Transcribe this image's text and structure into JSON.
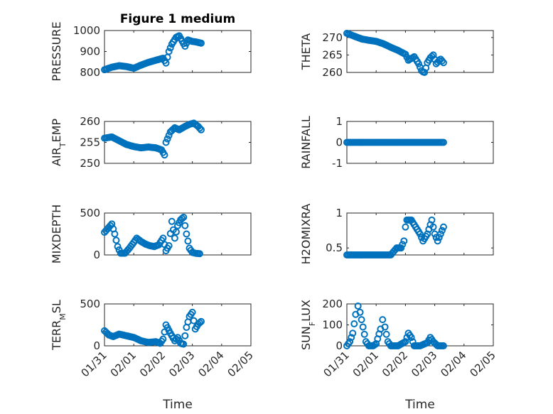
{
  "colors": {
    "marker": "#0072BD",
    "axis": "#262626"
  },
  "chart_data": [
    {
      "type": "scatter",
      "title": "Figure 1 medium",
      "ylabel": "PRESSURE",
      "xlabel": "",
      "ylim": [
        800,
        1000
      ],
      "yticks": [
        800,
        900,
        1000
      ],
      "xlim": [
        0,
        5
      ],
      "xticks": [
        "01/31",
        "02/01",
        "02/02",
        "02/03",
        "02/04",
        "02/05"
      ],
      "xticklabels_shown": false,
      "grid": true,
      "points": [
        [
          0,
          813
        ],
        [
          0.25,
          825
        ],
        [
          0.5,
          832
        ],
        [
          0.75,
          828
        ],
        [
          1,
          820
        ],
        [
          1.25,
          835
        ],
        [
          1.5,
          848
        ],
        [
          1.75,
          858
        ],
        [
          2,
          868
        ],
        [
          2.1,
          845
        ],
        [
          2.2,
          900
        ],
        [
          2.3,
          935
        ],
        [
          2.45,
          968
        ],
        [
          2.55,
          975
        ],
        [
          2.65,
          950
        ],
        [
          2.75,
          925
        ],
        [
          2.85,
          955
        ],
        [
          3,
          948
        ],
        [
          3.15,
          945
        ],
        [
          3.3,
          940
        ]
      ]
    },
    {
      "type": "scatter",
      "title": "",
      "ylabel": "THETA",
      "xlabel": "",
      "ylim": [
        260,
        272
      ],
      "yticks": [
        260,
        265,
        270
      ],
      "xlim": [
        0,
        5
      ],
      "xticks": [
        "01/31",
        "02/01",
        "02/02",
        "02/03",
        "02/04",
        "02/05"
      ],
      "xticklabels_shown": false,
      "grid": true,
      "points": [
        [
          0,
          271.2
        ],
        [
          0.25,
          270.4
        ],
        [
          0.5,
          269.6
        ],
        [
          0.75,
          269.2
        ],
        [
          1,
          268.9
        ],
        [
          1.25,
          268.2
        ],
        [
          1.5,
          267.2
        ],
        [
          1.75,
          266.3
        ],
        [
          2,
          265.2
        ],
        [
          2.1,
          263.5
        ],
        [
          2.3,
          264.5
        ],
        [
          2.45,
          262.5
        ],
        [
          2.55,
          260.5
        ],
        [
          2.65,
          259.8
        ],
        [
          2.75,
          262.8
        ],
        [
          2.85,
          264.2
        ],
        [
          2.95,
          265
        ],
        [
          3.05,
          262.5
        ],
        [
          3.2,
          263.8
        ],
        [
          3.3,
          262.8
        ]
      ]
    },
    {
      "type": "scatter",
      "title": "",
      "ylabel": "AIR_TEMP",
      "xlabel": "",
      "ylim": [
        250,
        260
      ],
      "yticks": [
        250,
        255,
        260
      ],
      "xlim": [
        0,
        5
      ],
      "xticks": [
        "01/31",
        "02/01",
        "02/02",
        "02/03",
        "02/04",
        "02/05"
      ],
      "xticklabels_shown": false,
      "grid": true,
      "points": [
        [
          0,
          256
        ],
        [
          0.25,
          256.3
        ],
        [
          0.5,
          255.4
        ],
        [
          0.75,
          254.5
        ],
        [
          1,
          254
        ],
        [
          1.25,
          253.7
        ],
        [
          1.5,
          253.9
        ],
        [
          1.75,
          253.7
        ],
        [
          1.95,
          253.2
        ],
        [
          2.05,
          252
        ],
        [
          2.1,
          255
        ],
        [
          2.25,
          257.5
        ],
        [
          2.4,
          258.5
        ],
        [
          2.55,
          258
        ],
        [
          2.75,
          258.8
        ],
        [
          2.9,
          259.3
        ],
        [
          3.05,
          259.6
        ],
        [
          3.2,
          258.8
        ],
        [
          3.3,
          258
        ]
      ]
    },
    {
      "type": "scatter",
      "title": "",
      "ylabel": "RAINFALL",
      "xlabel": "",
      "ylim": [
        -1,
        1
      ],
      "yticks": [
        -1,
        0,
        1
      ],
      "xlim": [
        0,
        5
      ],
      "xticks": [
        "01/31",
        "02/01",
        "02/02",
        "02/03",
        "02/04",
        "02/05"
      ],
      "xticklabels_shown": false,
      "grid": true,
      "points": [
        [
          0,
          0
        ],
        [
          0.25,
          0
        ],
        [
          0.5,
          0
        ],
        [
          0.75,
          0
        ],
        [
          1,
          0
        ],
        [
          1.25,
          0
        ],
        [
          1.5,
          0
        ],
        [
          1.75,
          0
        ],
        [
          2,
          0
        ],
        [
          2.25,
          0
        ],
        [
          2.5,
          0
        ],
        [
          2.75,
          0
        ],
        [
          3,
          0
        ],
        [
          3.25,
          0
        ],
        [
          3.3,
          0
        ]
      ]
    },
    {
      "type": "scatter",
      "title": "",
      "ylabel": "MIXDEPTH",
      "xlabel": "",
      "ylim": [
        0,
        500
      ],
      "yticks": [
        0,
        500
      ],
      "xlim": [
        0,
        5
      ],
      "xticks": [
        "01/31",
        "02/01",
        "02/02",
        "02/03",
        "02/04",
        "02/05"
      ],
      "xticklabels_shown": false,
      "grid": true,
      "points": [
        [
          0,
          270
        ],
        [
          0.15,
          330
        ],
        [
          0.25,
          370
        ],
        [
          0.35,
          250
        ],
        [
          0.45,
          100
        ],
        [
          0.55,
          20
        ],
        [
          0.7,
          20
        ],
        [
          0.85,
          80
        ],
        [
          1,
          150
        ],
        [
          1.1,
          200
        ],
        [
          1.25,
          160
        ],
        [
          1.4,
          130
        ],
        [
          1.55,
          110
        ],
        [
          1.7,
          100
        ],
        [
          1.85,
          120
        ],
        [
          2,
          200
        ],
        [
          2.1,
          50
        ],
        [
          2.2,
          110
        ],
        [
          2.3,
          400
        ],
        [
          2.4,
          200
        ],
        [
          2.5,
          350
        ],
        [
          2.6,
          420
        ],
        [
          2.7,
          450
        ],
        [
          2.8,
          250
        ],
        [
          2.9,
          80
        ],
        [
          3.0,
          30
        ],
        [
          3.1,
          20
        ],
        [
          3.25,
          15
        ]
      ]
    },
    {
      "type": "scatter",
      "title": "",
      "ylabel": "H2OMIXRA",
      "xlabel": "",
      "ylim": [
        0.4,
        1.0
      ],
      "yticks": [
        0.5,
        1
      ],
      "xlim": [
        0,
        5
      ],
      "xticks": [
        "01/31",
        "02/01",
        "02/02",
        "02/03",
        "02/04",
        "02/05"
      ],
      "xticklabels_shown": false,
      "grid": true,
      "points": [
        [
          0,
          0.4
        ],
        [
          0.3,
          0.4
        ],
        [
          0.6,
          0.4
        ],
        [
          0.9,
          0.4
        ],
        [
          1.2,
          0.4
        ],
        [
          1.5,
          0.4
        ],
        [
          1.7,
          0.5
        ],
        [
          1.85,
          0.5
        ],
        [
          1.95,
          0.6
        ],
        [
          2.0,
          0.8
        ],
        [
          2.05,
          0.9
        ],
        [
          2.2,
          0.9
        ],
        [
          2.35,
          0.8
        ],
        [
          2.5,
          0.7
        ],
        [
          2.6,
          0.6
        ],
        [
          2.75,
          0.7
        ],
        [
          2.9,
          0.9
        ],
        [
          3.0,
          0.7
        ],
        [
          3.1,
          0.6
        ],
        [
          3.2,
          0.7
        ],
        [
          3.3,
          0.8
        ]
      ]
    },
    {
      "type": "scatter",
      "title": "",
      "ylabel": "TERR_MSL",
      "xlabel": "Time",
      "ylim": [
        0,
        500
      ],
      "yticks": [
        0,
        500
      ],
      "xlim": [
        0,
        5
      ],
      "xticks": [
        "01/31",
        "02/01",
        "02/02",
        "02/03",
        "02/04",
        "02/05"
      ],
      "xticklabels_shown": true,
      "grid": true,
      "points": [
        [
          0,
          180
        ],
        [
          0.15,
          130
        ],
        [
          0.3,
          110
        ],
        [
          0.5,
          140
        ],
        [
          0.75,
          120
        ],
        [
          1,
          100
        ],
        [
          1.25,
          60
        ],
        [
          1.5,
          40
        ],
        [
          1.75,
          50
        ],
        [
          1.9,
          30
        ],
        [
          2,
          80
        ],
        [
          2.1,
          250
        ],
        [
          2.25,
          150
        ],
        [
          2.4,
          60
        ],
        [
          2.5,
          100
        ],
        [
          2.6,
          30
        ],
        [
          2.7,
          20
        ],
        [
          2.8,
          220
        ],
        [
          2.9,
          350
        ],
        [
          3.0,
          400
        ],
        [
          3.1,
          200
        ],
        [
          3.2,
          260
        ],
        [
          3.3,
          290
        ]
      ]
    },
    {
      "type": "scatter",
      "title": "",
      "ylabel": "SUN_FLUX",
      "xlabel": "Time",
      "ylim": [
        0,
        200
      ],
      "yticks": [
        0,
        100,
        200
      ],
      "xlim": [
        0,
        5
      ],
      "xticks": [
        "01/31",
        "02/01",
        "02/02",
        "02/03",
        "02/04",
        "02/05"
      ],
      "xticklabels_shown": true,
      "grid": true,
      "points": [
        [
          0,
          0
        ],
        [
          0.1,
          20
        ],
        [
          0.2,
          60
        ],
        [
          0.3,
          150
        ],
        [
          0.38,
          190
        ],
        [
          0.45,
          160
        ],
        [
          0.55,
          90
        ],
        [
          0.65,
          20
        ],
        [
          0.75,
          0
        ],
        [
          0.9,
          0
        ],
        [
          1.0,
          10
        ],
        [
          1.15,
          80
        ],
        [
          1.22,
          125
        ],
        [
          1.3,
          90
        ],
        [
          1.4,
          20
        ],
        [
          1.5,
          0
        ],
        [
          1.75,
          0
        ],
        [
          2.0,
          20
        ],
        [
          2.1,
          60
        ],
        [
          2.2,
          40
        ],
        [
          2.3,
          0
        ],
        [
          2.5,
          0
        ],
        [
          2.75,
          15
        ],
        [
          2.85,
          40
        ],
        [
          2.95,
          20
        ],
        [
          3.1,
          0
        ],
        [
          3.3,
          0
        ]
      ]
    }
  ]
}
